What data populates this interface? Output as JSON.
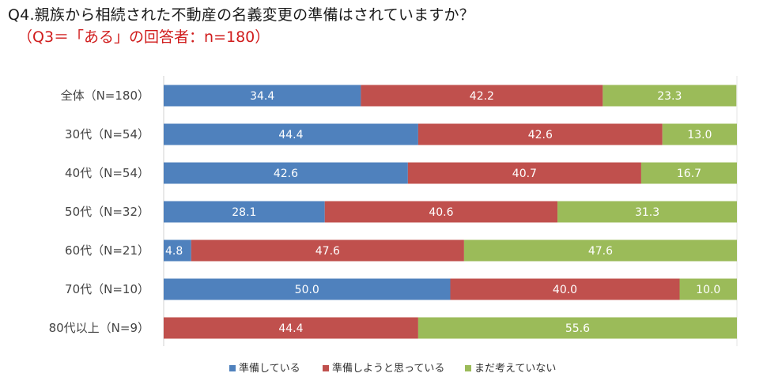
{
  "chart_data": {
    "type": "bar",
    "orientation": "horizontal-stacked-100",
    "title": "Q4.親族から相続された不動産の名義変更の準備はされていますか？",
    "subtitle": "（Q3＝「ある」の回答者：n=180）",
    "categories": [
      "全体（N=180）",
      "30代（N=54）",
      "40代（N=54）",
      "50代（N=32）",
      "60代（N=21）",
      "70代（N=10）",
      "80代以上（N=9）"
    ],
    "series": [
      {
        "name": "準備している",
        "color": "#4f81bd",
        "values": [
          34.4,
          44.4,
          42.6,
          28.1,
          4.8,
          50.0,
          0
        ]
      },
      {
        "name": "準備しようと思っている",
        "color": "#c0504d",
        "values": [
          42.2,
          42.6,
          40.7,
          40.6,
          47.6,
          40.0,
          44.4
        ]
      },
      {
        "name": "まだ考えていない",
        "color": "#9bbb59",
        "values": [
          23.3,
          13.0,
          16.7,
          31.3,
          47.6,
          10.0,
          55.6
        ]
      }
    ],
    "value_labels": [
      [
        "34.4",
        "44.4",
        "42.6",
        "28.1",
        "4.8",
        "50.0",
        ""
      ],
      [
        "42.2",
        "42.6",
        "40.7",
        "40.6",
        "47.6",
        "40.0",
        "44.4"
      ],
      [
        "23.3",
        "13.0",
        "16.7",
        "31.3",
        "47.6",
        "10.0",
        "55.6"
      ]
    ],
    "xlim": [
      0,
      100
    ],
    "legend_position": "bottom"
  }
}
